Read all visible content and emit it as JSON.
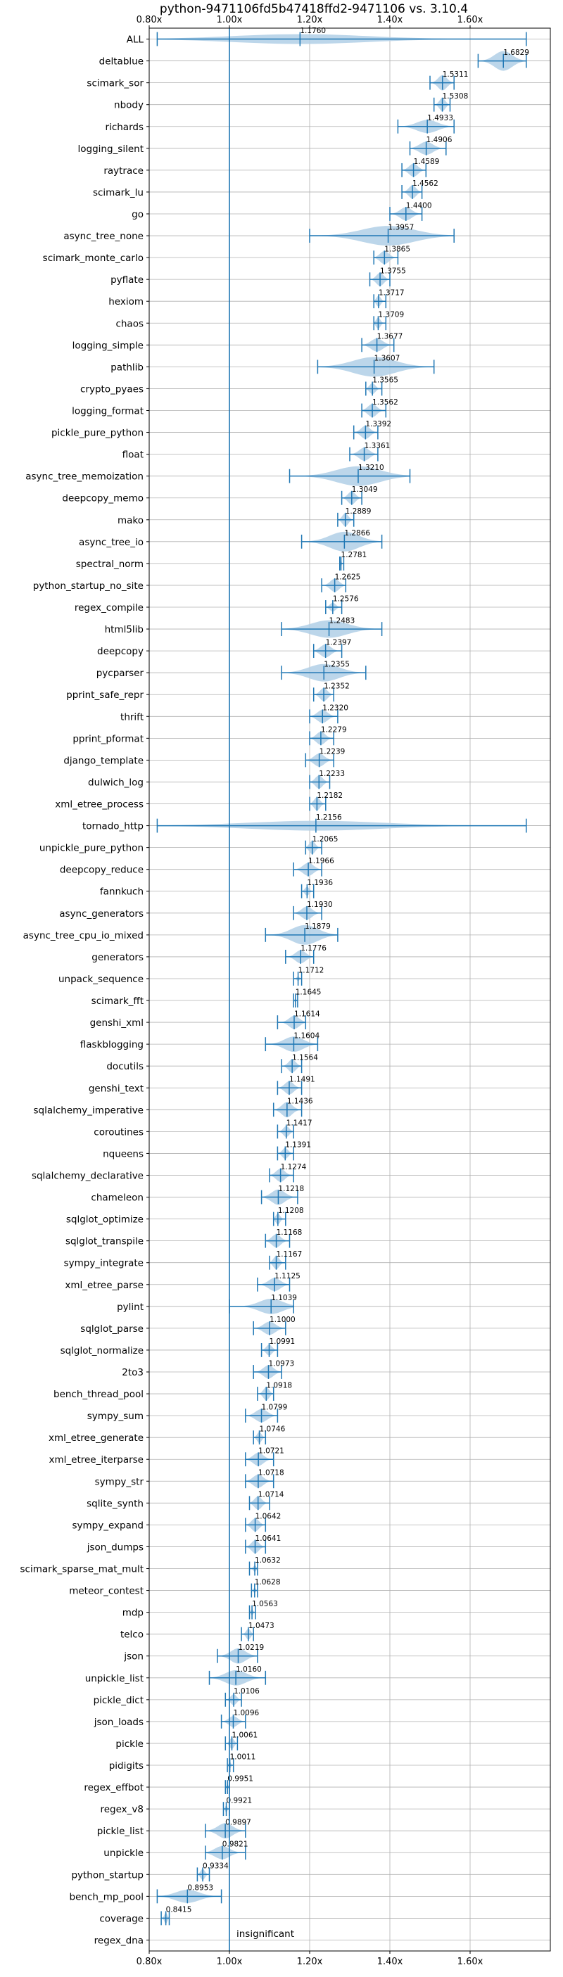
{
  "chart_data": {
    "type": "violin",
    "title": "python-9471106fd5b47418ffd2-9471106 vs. 3.10.4",
    "xlim": [
      0.8,
      1.8
    ],
    "x_ticks": [
      0.8,
      1.0,
      1.2,
      1.4,
      1.6
    ],
    "x_tick_labels": [
      "0.80x",
      "1.00x",
      "1.20x",
      "1.40x",
      "1.60x"
    ],
    "reference_line": 1.0,
    "annotation": "insignificant",
    "grid": true,
    "colors": {
      "accent": "#1f77b4",
      "violin_fill": "#b0cfe6",
      "grid": "#b0b0b0"
    },
    "categories": [
      "ALL",
      "deltablue",
      "scimark_sor",
      "nbody",
      "richards",
      "logging_silent",
      "raytrace",
      "scimark_lu",
      "go",
      "async_tree_none",
      "scimark_monte_carlo",
      "pyflate",
      "hexiom",
      "chaos",
      "logging_simple",
      "pathlib",
      "crypto_pyaes",
      "logging_format",
      "pickle_pure_python",
      "float",
      "async_tree_memoization",
      "deepcopy_memo",
      "mako",
      "async_tree_io",
      "spectral_norm",
      "python_startup_no_site",
      "regex_compile",
      "html5lib",
      "deepcopy",
      "pycparser",
      "pprint_safe_repr",
      "thrift",
      "pprint_pformat",
      "django_template",
      "dulwich_log",
      "xml_etree_process",
      "tornado_http",
      "unpickle_pure_python",
      "deepcopy_reduce",
      "fannkuch",
      "async_generators",
      "async_tree_cpu_io_mixed",
      "generators",
      "unpack_sequence",
      "scimark_fft",
      "genshi_xml",
      "flaskblogging",
      "docutils",
      "genshi_text",
      "sqlalchemy_imperative",
      "coroutines",
      "nqueens",
      "sqlalchemy_declarative",
      "chameleon",
      "sqlglot_optimize",
      "sqlglot_transpile",
      "sympy_integrate",
      "xml_etree_parse",
      "pylint",
      "sqlglot_parse",
      "sqlglot_normalize",
      "2to3",
      "bench_thread_pool",
      "sympy_sum",
      "xml_etree_generate",
      "xml_etree_iterparse",
      "sympy_str",
      "sqlite_synth",
      "sympy_expand",
      "json_dumps",
      "scimark_sparse_mat_mult",
      "meteor_contest",
      "mdp",
      "telco",
      "json",
      "unpickle_list",
      "pickle_dict",
      "json_loads",
      "pickle",
      "pidigits",
      "regex_effbot",
      "regex_v8",
      "pickle_list",
      "unpickle",
      "python_startup",
      "bench_mp_pool",
      "coverage",
      "regex_dna"
    ],
    "means": [
      1.176,
      1.6829,
      1.5311,
      1.5308,
      1.4933,
      1.4906,
      1.4589,
      1.4562,
      1.44,
      1.3957,
      1.3865,
      1.3755,
      1.3717,
      1.3709,
      1.3677,
      1.3607,
      1.3565,
      1.3562,
      1.3392,
      1.3361,
      1.321,
      1.3049,
      1.2889,
      1.2866,
      1.2781,
      1.2625,
      1.2576,
      1.2483,
      1.2397,
      1.2355,
      1.2352,
      1.232,
      1.2279,
      1.2239,
      1.2233,
      1.2182,
      1.2156,
      1.2065,
      1.1966,
      1.1936,
      1.193,
      1.1879,
      1.1776,
      1.1712,
      1.1645,
      1.1614,
      1.1604,
      1.1564,
      1.1491,
      1.1436,
      1.1417,
      1.1391,
      1.1274,
      1.1218,
      1.1208,
      1.1168,
      1.1167,
      1.1125,
      1.1039,
      1.1,
      1.0991,
      1.0973,
      1.0918,
      1.0799,
      1.0746,
      1.0721,
      1.0718,
      1.0714,
      1.0642,
      1.0641,
      1.0632,
      1.0628,
      1.0563,
      1.0473,
      1.0219,
      1.016,
      1.0106,
      1.0096,
      1.0061,
      1.0011,
      0.9951,
      0.9921,
      0.9897,
      0.9821,
      0.9334,
      0.8953,
      0.8415,
      null
    ],
    "mean_labels": [
      "1.1760",
      "1.6829",
      "1.5311",
      "1.5308",
      "1.4933",
      "1.4906",
      "1.4589",
      "1.4562",
      "1.4400",
      "1.3957",
      "1.3865",
      "1.3755",
      "1.3717",
      "1.3709",
      "1.3677",
      "1.3607",
      "1.3565",
      "1.3562",
      "1.3392",
      "1.3361",
      "1.3210",
      "1.3049",
      "1.2889",
      "1.2866",
      "1.2781",
      "1.2625",
      "1.2576",
      "1.2483",
      "1.2397",
      "1.2355",
      "1.2352",
      "1.2320",
      "1.2279",
      "1.2239",
      "1.2233",
      "1.2182",
      "1.2156",
      "1.2065",
      "1.1966",
      "1.1936",
      "1.1930",
      "1.1879",
      "1.1776",
      "1.1712",
      "1.1645",
      "1.1614",
      "1.1604",
      "1.1564",
      "1.1491",
      "1.1436",
      "1.1417",
      "1.1391",
      "1.1274",
      "1.1218",
      "1.1208",
      "1.1168",
      "1.1167",
      "1.1125",
      "1.1039",
      "1.1000",
      "1.0991",
      "1.0973",
      "1.0918",
      "1.0799",
      "1.0746",
      "1.0721",
      "1.0718",
      "1.0714",
      "1.0642",
      "1.0641",
      "1.0632",
      "1.0628",
      "1.0563",
      "1.0473",
      "1.0219",
      "1.0160",
      "1.0106",
      "1.0096",
      "1.0061",
      "1.0011",
      "0.9951",
      "0.9921",
      "0.9897",
      "0.9821",
      "0.9334",
      "0.8953",
      "0.8415",
      ""
    ],
    "ranges": [
      [
        0.82,
        1.74
      ],
      [
        1.62,
        1.74
      ],
      [
        1.5,
        1.56
      ],
      [
        1.51,
        1.55
      ],
      [
        1.42,
        1.56
      ],
      [
        1.45,
        1.54
      ],
      [
        1.43,
        1.49
      ],
      [
        1.43,
        1.48
      ],
      [
        1.4,
        1.48
      ],
      [
        1.2,
        1.56
      ],
      [
        1.36,
        1.42
      ],
      [
        1.35,
        1.4
      ],
      [
        1.36,
        1.39
      ],
      [
        1.36,
        1.39
      ],
      [
        1.33,
        1.41
      ],
      [
        1.22,
        1.51
      ],
      [
        1.34,
        1.38
      ],
      [
        1.33,
        1.39
      ],
      [
        1.31,
        1.37
      ],
      [
        1.3,
        1.37
      ],
      [
        1.15,
        1.45
      ],
      [
        1.28,
        1.33
      ],
      [
        1.27,
        1.31
      ],
      [
        1.18,
        1.38
      ],
      [
        1.275,
        1.285
      ],
      [
        1.23,
        1.29
      ],
      [
        1.24,
        1.28
      ],
      [
        1.13,
        1.38
      ],
      [
        1.21,
        1.28
      ],
      [
        1.13,
        1.34
      ],
      [
        1.21,
        1.26
      ],
      [
        1.2,
        1.27
      ],
      [
        1.2,
        1.26
      ],
      [
        1.19,
        1.26
      ],
      [
        1.2,
        1.25
      ],
      [
        1.2,
        1.24
      ],
      [
        0.82,
        1.74
      ],
      [
        1.19,
        1.23
      ],
      [
        1.16,
        1.23
      ],
      [
        1.18,
        1.21
      ],
      [
        1.16,
        1.23
      ],
      [
        1.09,
        1.27
      ],
      [
        1.14,
        1.21
      ],
      [
        1.16,
        1.18
      ],
      [
        1.16,
        1.17
      ],
      [
        1.12,
        1.19
      ],
      [
        1.09,
        1.22
      ],
      [
        1.13,
        1.18
      ],
      [
        1.12,
        1.18
      ],
      [
        1.11,
        1.18
      ],
      [
        1.12,
        1.16
      ],
      [
        1.12,
        1.16
      ],
      [
        1.1,
        1.16
      ],
      [
        1.08,
        1.17
      ],
      [
        1.11,
        1.14
      ],
      [
        1.09,
        1.15
      ],
      [
        1.1,
        1.14
      ],
      [
        1.07,
        1.15
      ],
      [
        1.0,
        1.16
      ],
      [
        1.06,
        1.14
      ],
      [
        1.08,
        1.12
      ],
      [
        1.06,
        1.13
      ],
      [
        1.07,
        1.11
      ],
      [
        1.04,
        1.12
      ],
      [
        1.06,
        1.09
      ],
      [
        1.04,
        1.11
      ],
      [
        1.04,
        1.11
      ],
      [
        1.05,
        1.1
      ],
      [
        1.04,
        1.09
      ],
      [
        1.04,
        1.09
      ],
      [
        1.05,
        1.07
      ],
      [
        1.055,
        1.07
      ],
      [
        1.05,
        1.065
      ],
      [
        1.03,
        1.06
      ],
      [
        0.97,
        1.07
      ],
      [
        0.95,
        1.09
      ],
      [
        0.99,
        1.03
      ],
      [
        0.98,
        1.04
      ],
      [
        0.99,
        1.02
      ],
      [
        0.995,
        1.01
      ],
      [
        0.99,
        1.0
      ],
      [
        0.985,
        1.0
      ],
      [
        0.94,
        1.04
      ],
      [
        0.94,
        1.04
      ],
      [
        0.92,
        0.95
      ],
      [
        0.82,
        0.98
      ],
      [
        0.83,
        0.85
      ],
      null
    ],
    "widths": [
      0.45,
      0.9,
      0.7,
      0.6,
      0.6,
      0.6,
      0.6,
      0.6,
      0.6,
      0.9,
      0.6,
      0.6,
      0.5,
      0.5,
      0.6,
      0.9,
      0.5,
      0.6,
      0.6,
      0.6,
      0.9,
      0.6,
      0.6,
      0.9,
      0.25,
      0.6,
      0.4,
      0.8,
      0.6,
      0.8,
      0.6,
      0.6,
      0.6,
      0.6,
      0.6,
      0.6,
      0.45,
      0.6,
      0.6,
      0.4,
      0.6,
      0.9,
      0.6,
      0.2,
      0.2,
      0.6,
      0.7,
      0.6,
      0.6,
      0.7,
      0.5,
      0.5,
      0.6,
      0.7,
      0.5,
      0.6,
      0.6,
      0.6,
      0.7,
      0.6,
      0.5,
      0.6,
      0.6,
      0.6,
      0.5,
      0.6,
      0.6,
      0.6,
      0.6,
      0.6,
      0.3,
      0.25,
      0.3,
      0.5,
      0.7,
      0.7,
      0.5,
      0.5,
      0.5,
      0.3,
      0.3,
      0.3,
      0.7,
      0.6,
      0.5,
      0.6,
      0.5,
      0
    ]
  }
}
